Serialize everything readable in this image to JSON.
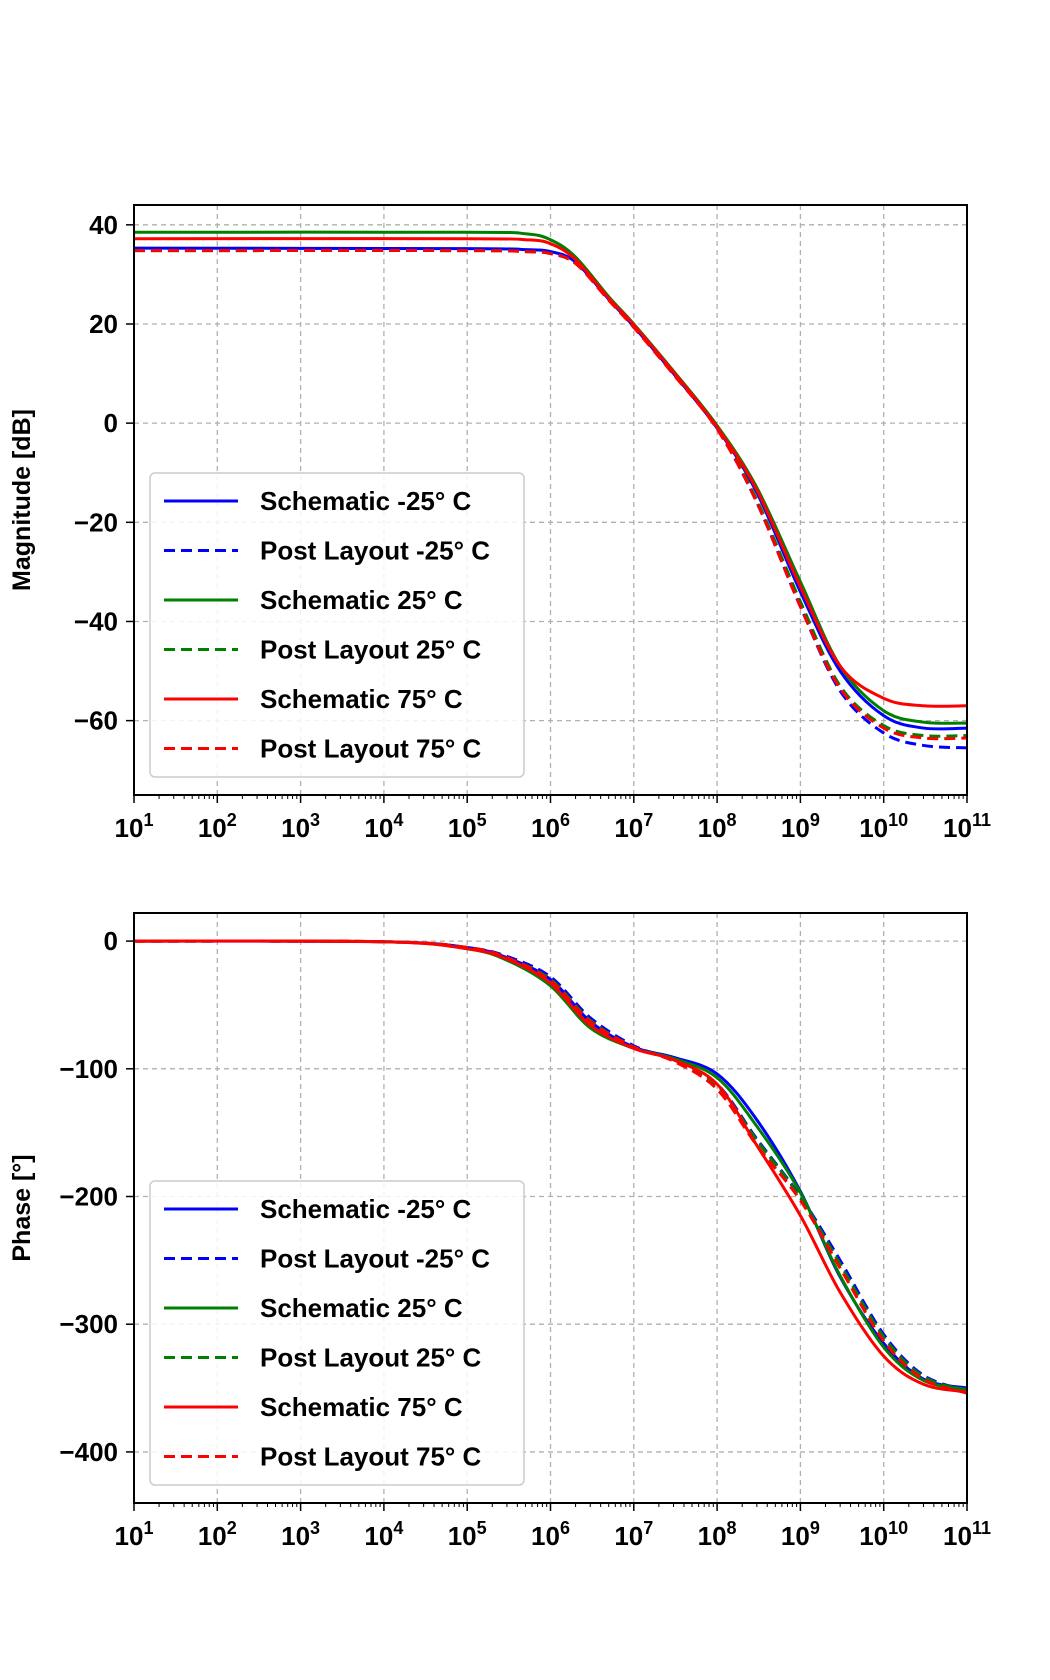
{
  "chart_data": [
    {
      "type": "line",
      "title": "",
      "xlabel": "",
      "ylabel": "Magnitude [dB]",
      "xscale": "log",
      "xlim": [
        10,
        100000000000
      ],
      "ylim": [
        -75,
        44
      ],
      "yticks": [
        40,
        20,
        0,
        -20,
        -40,
        -60
      ],
      "ytick_labels": [
        "40",
        "20",
        "0",
        "−20",
        "−40",
        "−60"
      ],
      "xtick_exponents": [
        "1",
        "2",
        "3",
        "4",
        "5",
        "6",
        "7",
        "8",
        "9",
        "10",
        "11"
      ],
      "xtick_base": "10",
      "grid": true,
      "legend": {
        "position": "lower-left"
      },
      "series": [
        {
          "name": "Schematic -25° C",
          "color": "#0000ff",
          "style": "solid",
          "x": [
            10,
            100000,
            500000,
            1000000,
            2000000,
            5000000,
            10000000,
            30000000,
            100000000,
            300000000,
            1000000000,
            3000000000,
            10000000000,
            30000000000,
            100000000000
          ],
          "y": [
            35.3,
            35.2,
            35.0,
            34.6,
            32.5,
            25.0,
            19.5,
            10.0,
            -1.0,
            -14.0,
            -34.0,
            -50.0,
            -59.0,
            -61.5,
            -61.5
          ]
        },
        {
          "name": "Post Layout -25° C",
          "color": "#0000ff",
          "style": "dashed",
          "x": [
            10,
            100000,
            500000,
            1000000,
            2000000,
            5000000,
            10000000,
            30000000,
            100000000,
            300000000,
            1000000000,
            3000000000,
            10000000000,
            30000000000,
            100000000000
          ],
          "y": [
            35.0,
            35.0,
            34.8,
            34.4,
            32.3,
            25.0,
            19.5,
            10.0,
            -1.0,
            -16.0,
            -37.0,
            -54.0,
            -62.5,
            -65.0,
            -65.5
          ]
        },
        {
          "name": "Schematic 25° C",
          "color": "#008000",
          "style": "solid",
          "x": [
            10,
            100000,
            500000,
            1000000,
            2000000,
            5000000,
            10000000,
            30000000,
            100000000,
            300000000,
            1000000000,
            3000000000,
            10000000000,
            30000000000,
            100000000000
          ],
          "y": [
            38.5,
            38.5,
            38.2,
            37.0,
            33.5,
            25.5,
            20.0,
            10.5,
            -0.5,
            -13.0,
            -32.0,
            -49.0,
            -58.0,
            -60.3,
            -60.5
          ]
        },
        {
          "name": "Post Layout 25° C",
          "color": "#008000",
          "style": "dashed",
          "x": [
            10,
            100000,
            500000,
            1000000,
            2000000,
            5000000,
            10000000,
            30000000,
            100000000,
            300000000,
            1000000000,
            3000000000,
            10000000000,
            30000000000,
            100000000000
          ],
          "y": [
            34.8,
            34.8,
            34.6,
            34.2,
            32.2,
            25.0,
            19.5,
            10.0,
            -1.0,
            -15.5,
            -36.0,
            -53.0,
            -61.0,
            -63.0,
            -63.0
          ]
        },
        {
          "name": "Schematic 75° C",
          "color": "#ff0000",
          "style": "solid",
          "x": [
            10,
            100000,
            500000,
            1000000,
            2000000,
            5000000,
            10000000,
            30000000,
            100000000,
            300000000,
            1000000000,
            3000000000,
            10000000000,
            30000000000,
            100000000000
          ],
          "y": [
            37.2,
            37.2,
            37.0,
            36.2,
            33.0,
            25.2,
            19.8,
            10.3,
            -0.8,
            -13.5,
            -33.0,
            -49.0,
            -55.5,
            -57.0,
            -57.0
          ]
        },
        {
          "name": "Post Layout 75° C",
          "color": "#ff0000",
          "style": "dashed",
          "x": [
            10,
            100000,
            500000,
            1000000,
            2000000,
            5000000,
            10000000,
            30000000,
            100000000,
            300000000,
            1000000000,
            3000000000,
            10000000000,
            30000000000,
            100000000000
          ],
          "y": [
            34.8,
            34.8,
            34.6,
            34.2,
            32.2,
            24.8,
            19.3,
            9.8,
            -1.2,
            -16.0,
            -37.0,
            -53.5,
            -61.5,
            -63.5,
            -63.5
          ]
        }
      ]
    },
    {
      "type": "line",
      "title": "",
      "xlabel": "",
      "ylabel": "Phase [°]",
      "xscale": "log",
      "xlim": [
        10,
        100000000000
      ],
      "ylim": [
        -440,
        22
      ],
      "yticks": [
        0,
        -100,
        -200,
        -300,
        -400
      ],
      "ytick_labels": [
        "0",
        "−100",
        "−200",
        "−300",
        "−400"
      ],
      "xtick_exponents": [
        "1",
        "2",
        "3",
        "4",
        "5",
        "6",
        "7",
        "8",
        "9",
        "10",
        "11"
      ],
      "xtick_base": "10",
      "grid": true,
      "legend": {
        "position": "lower-left"
      },
      "series": [
        {
          "name": "Schematic -25° C",
          "color": "#0000ff",
          "style": "solid",
          "x": [
            10,
            10000,
            100000,
            300000,
            1000000,
            3000000,
            10000000,
            30000000,
            100000000,
            300000000,
            1000000000,
            3000000000,
            10000000000,
            30000000000,
            100000000000
          ],
          "y": [
            0,
            -0.5,
            -5,
            -13,
            -30,
            -63,
            -83,
            -91,
            -104,
            -140,
            -196,
            -263,
            -315,
            -343,
            -350
          ]
        },
        {
          "name": "Post Layout -25° C",
          "color": "#0000ff",
          "style": "dashed",
          "x": [
            10,
            10000,
            100000,
            300000,
            1000000,
            3000000,
            10000000,
            30000000,
            100000000,
            300000000,
            1000000000,
            3000000000,
            10000000000,
            30000000000,
            100000000000
          ],
          "y": [
            0,
            -0.5,
            -5,
            -12,
            -28,
            -60,
            -82,
            -93,
            -112,
            -155,
            -200,
            -250,
            -308,
            -340,
            -352
          ]
        },
        {
          "name": "Schematic 25° C",
          "color": "#008000",
          "style": "solid",
          "x": [
            10,
            10000,
            100000,
            300000,
            1000000,
            3000000,
            10000000,
            30000000,
            100000000,
            300000000,
            1000000000,
            3000000000,
            10000000000,
            30000000000,
            100000000000
          ],
          "y": [
            0,
            -0.5,
            -6,
            -15,
            -35,
            -68,
            -84,
            -92,
            -107,
            -145,
            -197,
            -262,
            -318,
            -344,
            -351
          ]
        },
        {
          "name": "Post Layout 25° C",
          "color": "#008000",
          "style": "dashed",
          "x": [
            10,
            10000,
            100000,
            300000,
            1000000,
            3000000,
            10000000,
            30000000,
            100000000,
            300000000,
            1000000000,
            3000000000,
            10000000000,
            30000000000,
            100000000000
          ],
          "y": [
            0,
            -0.5,
            -5,
            -13,
            -30,
            -62,
            -83,
            -93,
            -113,
            -156,
            -201,
            -253,
            -310,
            -341,
            -352
          ]
        },
        {
          "name": "Schematic 75° C",
          "color": "#ff0000",
          "style": "solid",
          "x": [
            10,
            10000,
            100000,
            300000,
            1000000,
            3000000,
            10000000,
            30000000,
            100000000,
            300000000,
            1000000000,
            3000000000,
            10000000000,
            30000000000,
            100000000000
          ],
          "y": [
            0,
            -0.5,
            -6,
            -14,
            -33,
            -66,
            -84,
            -93,
            -112,
            -160,
            -215,
            -275,
            -325,
            -347,
            -353
          ]
        },
        {
          "name": "Post Layout 75° C",
          "color": "#ff0000",
          "style": "dashed",
          "x": [
            10,
            10000,
            100000,
            300000,
            1000000,
            3000000,
            10000000,
            30000000,
            100000000,
            300000000,
            1000000000,
            3000000000,
            10000000000,
            30000000000,
            100000000000
          ],
          "y": [
            0,
            -0.5,
            -5,
            -13,
            -31,
            -63,
            -83,
            -94,
            -116,
            -160,
            -203,
            -256,
            -313,
            -343,
            -354
          ]
        }
      ]
    }
  ]
}
